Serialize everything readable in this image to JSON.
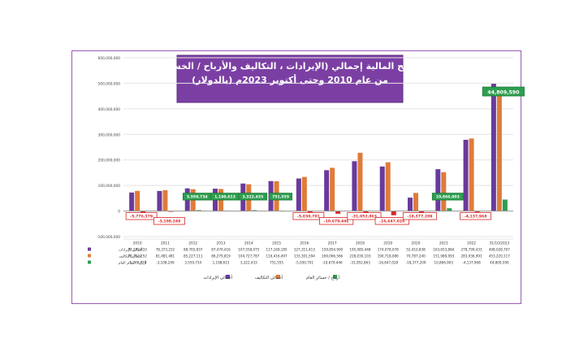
{
  "chart_data": {
    "type": "bar",
    "title": "النتائج المالية إجمالي (الإيرادات ، التكاليف والأرباح / الخسائر)",
    "subtitle": "من عام 2010 وحتى أكتوبر 2023م (بالدولار)",
    "categories": [
      "2010",
      "2011",
      "2012",
      "2013",
      "2014",
      "2015",
      "2016",
      "2017",
      "2018",
      "2019",
      "2020",
      "2021",
      "2022",
      "31/10/2023"
    ],
    "ylim": [
      -100000000,
      600000000
    ],
    "yticks": [
      "600,000,000",
      "500,000,000",
      "400,000,000",
      "300,000,000",
      "200,000,000",
      "100,000,000",
      "0",
      "-100,000,000"
    ],
    "grid": true,
    "legend_position": "bottom",
    "series": [
      {
        "name": "أجمالي الإيرادات",
        "color": "#6a3a9c",
        "values": [
          72379833,
          78373232,
          88765837,
          87479416,
          107558075,
          117169185,
          127311413,
          159854900,
          195085448,
          174078078,
          52410838,
          163653884,
          278799433,
          498028707
        ],
        "table": [
          "72,379,833",
          "78,373,232",
          "88,765,837",
          "87,479,416",
          "107,558,075",
          "117,169,185",
          "127,311,413",
          "159,854,900",
          "195,085,448",
          "174,078,078",
          "52,410,838",
          "163,653,884",
          "278,799,433",
          "498,028,707"
        ]
      },
      {
        "name": "أجمالي التكاليف",
        "color": "#e07b39",
        "values": [
          78752252,
          81481481,
          85227111,
          86279819,
          104727787,
          116416497,
          133301594,
          169066566,
          228030103,
          190718086,
          70787240,
          151989993,
          283936991,
          453220117
        ],
        "table": [
          "78,752,252",
          "81,481,481",
          "85,227,111",
          "86,279,819",
          "104,727,787",
          "116,416,497",
          "133,301,594",
          "169,066,566",
          "228,030,103",
          "190,718,086",
          "70,787,240",
          "151,989,993",
          "283,936,991",
          "453,220,117"
        ]
      },
      {
        "name": "أرباح / خسائر العام",
        "color": "#2e9e4f",
        "values": [
          -5776379,
          -3108249,
          3559734,
          1198613,
          3322433,
          751555,
          -5030701,
          -10679446,
          -31952863,
          -16647028,
          -18377209,
          10866903,
          -4137968,
          44809590
        ],
        "table": [
          "-5,776,379",
          "-3,108,249",
          "3,559,734",
          "1,198,613",
          "3,322,433",
          "751,555",
          "-5,030,701",
          "-10,679,446",
          "-31,952,863",
          "-16,647,028",
          "-18,377,209",
          "10,866,903",
          "-4,137,968",
          "44,809,590"
        ],
        "labels": [
          "-5,776,379",
          "-3,108,249",
          "3,559,734",
          "1,198,613",
          "3,322,433",
          "751,555",
          "-5,030,701",
          "-10,679,446",
          "-31,952,863",
          "-16,647,028",
          "-18,377,209",
          "10,866,903",
          "-4,137,968",
          "44,809,590"
        ]
      }
    ]
  }
}
